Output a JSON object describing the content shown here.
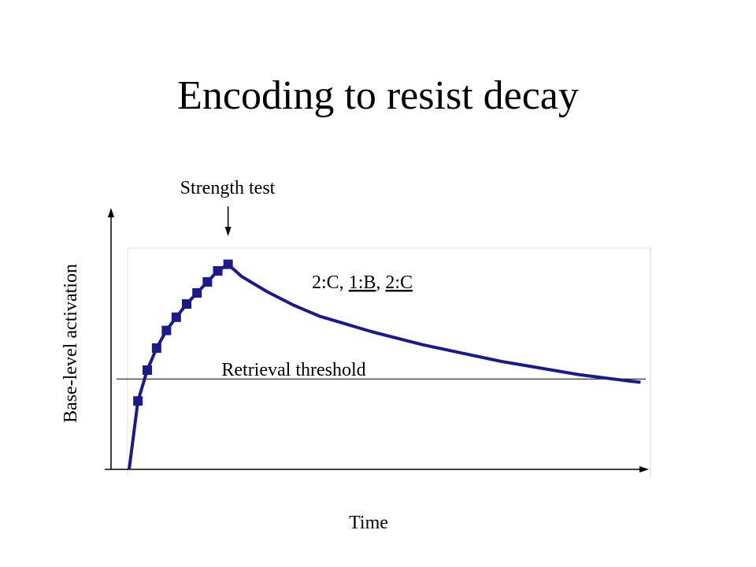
{
  "title": "Encoding to resist decay",
  "chart_data": {
    "type": "line",
    "xlabel": "Time",
    "ylabel": "Base-level activation",
    "ylim": [
      0,
      100
    ],
    "xlim": [
      0,
      100
    ],
    "series": [
      {
        "name": "2:C, 1:B, 2:C",
        "color": "#1a1a8c",
        "rise_points": [
          {
            "x": 2.0,
            "y": 31.0
          },
          {
            "x": 3.8,
            "y": 45.0
          },
          {
            "x": 5.6,
            "y": 55.0
          },
          {
            "x": 7.5,
            "y": 63.0
          },
          {
            "x": 9.4,
            "y": 69.0
          },
          {
            "x": 11.4,
            "y": 75.0
          },
          {
            "x": 13.4,
            "y": 80.0
          },
          {
            "x": 15.4,
            "y": 85.0
          },
          {
            "x": 17.4,
            "y": 90.0
          },
          {
            "x": 19.4,
            "y": 93.0
          }
        ],
        "rise_start": {
          "x": 0.3,
          "y": 0.0
        },
        "decay_points": [
          {
            "x": 19.4,
            "y": 93.0
          },
          {
            "x": 22.0,
            "y": 87.5
          },
          {
            "x": 27.0,
            "y": 80.5
          },
          {
            "x": 32.0,
            "y": 74.5
          },
          {
            "x": 37.0,
            "y": 69.5
          },
          {
            "x": 42.0,
            "y": 66.0
          },
          {
            "x": 47.0,
            "y": 62.5
          },
          {
            "x": 52.0,
            "y": 59.5
          },
          {
            "x": 57.0,
            "y": 56.5
          },
          {
            "x": 62.0,
            "y": 54.0
          },
          {
            "x": 67.0,
            "y": 51.5
          },
          {
            "x": 72.0,
            "y": 49.0
          },
          {
            "x": 77.0,
            "y": 47.0
          },
          {
            "x": 82.0,
            "y": 45.0
          },
          {
            "x": 87.0,
            "y": 43.0
          },
          {
            "x": 92.0,
            "y": 41.5
          },
          {
            "x": 97.0,
            "y": 40.0
          },
          {
            "x": 99.0,
            "y": 39.5
          }
        ]
      }
    ],
    "threshold": {
      "label": "Retrieval threshold",
      "y": 41.0
    },
    "annotation": {
      "label": "Strength test",
      "x": 19.4
    },
    "legend_label": {
      "prefix": "2:C, ",
      "part_1": "1:B",
      "separator": ", ",
      "part_2": "2:C"
    }
  }
}
